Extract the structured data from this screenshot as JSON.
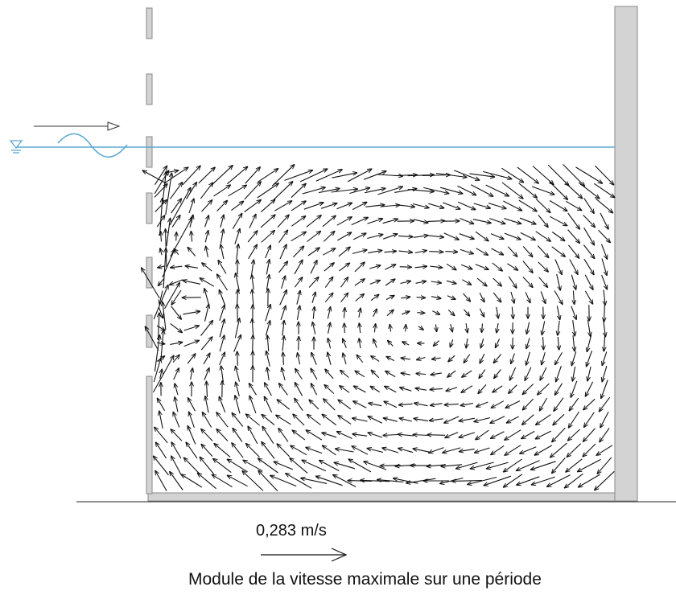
{
  "scale_label": "0,283 m/s",
  "caption": "Module de la vitesse maximale sur une période",
  "colors": {
    "water_line": "#5aa9cf",
    "wall_fill": "#d3d3d3",
    "wall_stroke": "#8a8a8a",
    "arrows": "#111111"
  },
  "icons": {
    "water_level": "water-level-symbol-icon",
    "incident_wave": "wave-icon",
    "incident_direction": "arrow-right-icon"
  }
}
